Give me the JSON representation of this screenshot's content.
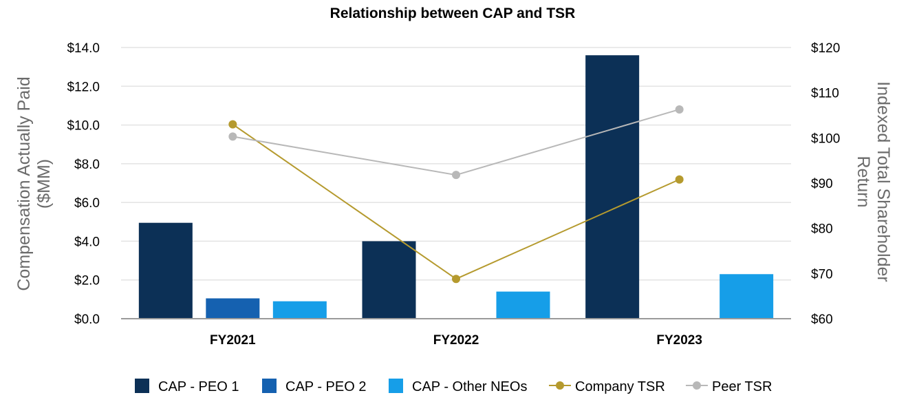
{
  "chart_data": {
    "type": "bar",
    "title": "Relationship between CAP and TSR",
    "categories": [
      "FY2021",
      "FY2022",
      "FY2023"
    ],
    "y_left": {
      "label_lines": [
        "Compensation Actually Paid",
        "($MM)"
      ],
      "ylim": [
        0,
        14
      ],
      "ticks": [
        0,
        2,
        4,
        6,
        8,
        10,
        12,
        14
      ],
      "tick_labels": [
        "$0.0",
        "$2.0",
        "$4.0",
        "$6.0",
        "$8.0",
        "$10.0",
        "$12.0",
        "$14.0"
      ]
    },
    "y_right": {
      "label_lines": [
        "Indexed Total Shareholder",
        "Return"
      ],
      "ylim": [
        60,
        120
      ],
      "ticks": [
        60,
        70,
        80,
        90,
        100,
        110,
        120
      ],
      "tick_labels": [
        "$60",
        "$70",
        "$80",
        "$90",
        "$100",
        "$110",
        "$120"
      ]
    },
    "bar_series": [
      {
        "name": "CAP - PEO 1",
        "color": "#0c3056",
        "values": [
          4.95,
          4.0,
          13.6
        ]
      },
      {
        "name": "CAP - PEO 2",
        "color": "#1561b0",
        "values": [
          1.05,
          null,
          null
        ]
      },
      {
        "name": "CAP - Other NEOs",
        "color": "#169ee8",
        "values": [
          0.9,
          1.4,
          2.3
        ]
      }
    ],
    "line_series": [
      {
        "name": "Company TSR",
        "color": "#b59a2e",
        "axis": "right",
        "values": [
          103.0,
          68.8,
          90.8
        ]
      },
      {
        "name": "Peer TSR",
        "color": "#b8b8b8",
        "axis": "right",
        "values": [
          100.3,
          91.8,
          106.3
        ]
      }
    ],
    "grid": true,
    "legend_position": "bottom"
  }
}
